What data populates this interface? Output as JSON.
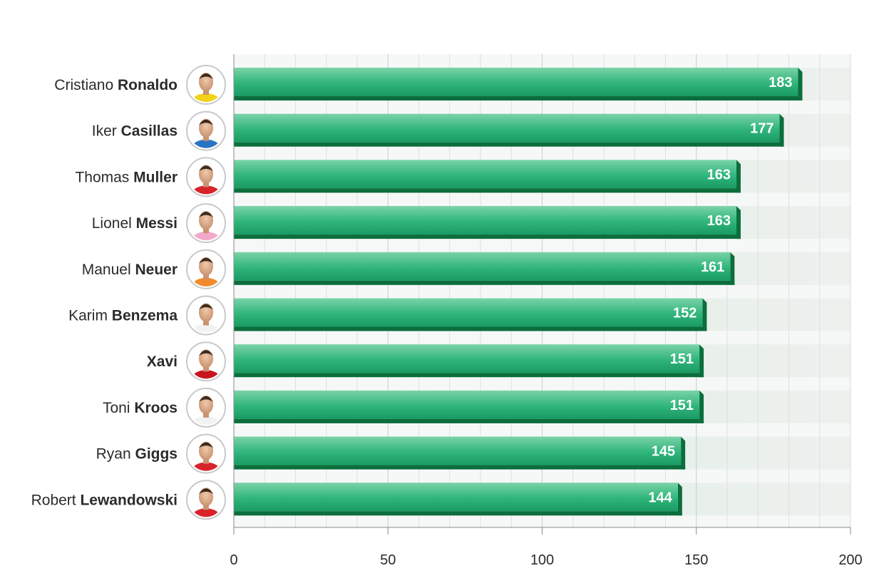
{
  "chart_data": {
    "type": "bar",
    "orientation": "horizontal",
    "title": "",
    "xlabel": "",
    "ylabel": "",
    "xlim": [
      0,
      200
    ],
    "x_ticks": [
      "0",
      "50",
      "100",
      "150",
      "200"
    ],
    "grid": true,
    "categories": [
      {
        "first": "Cristiano",
        "last": "Ronaldo"
      },
      {
        "first": "Iker",
        "last": "Casillas"
      },
      {
        "first": "Thomas",
        "last": "Muller"
      },
      {
        "first": "Lionel",
        "last": "Messi"
      },
      {
        "first": "Manuel",
        "last": "Neuer"
      },
      {
        "first": "Karim",
        "last": "Benzema"
      },
      {
        "first": "",
        "last": "Xavi"
      },
      {
        "first": "Toni",
        "last": "Kroos"
      },
      {
        "first": "Ryan",
        "last": "Giggs"
      },
      {
        "first": "Robert",
        "last": "Lewandowski"
      }
    ],
    "values": [
      183,
      177,
      163,
      163,
      161,
      152,
      151,
      151,
      145,
      144
    ],
    "avatar_colors": [
      "#f2d21a",
      "#2a74c4",
      "#d8232a",
      "#f4a8c8",
      "#f08a2c",
      "#f2f2f2",
      "#c8161d",
      "#f2f2f2",
      "#d8232a",
      "#d8232a"
    ],
    "bar_colors": {
      "top": "#7ad3a8",
      "main": "#1ea36a",
      "dark": "#0b6e3c"
    }
  }
}
